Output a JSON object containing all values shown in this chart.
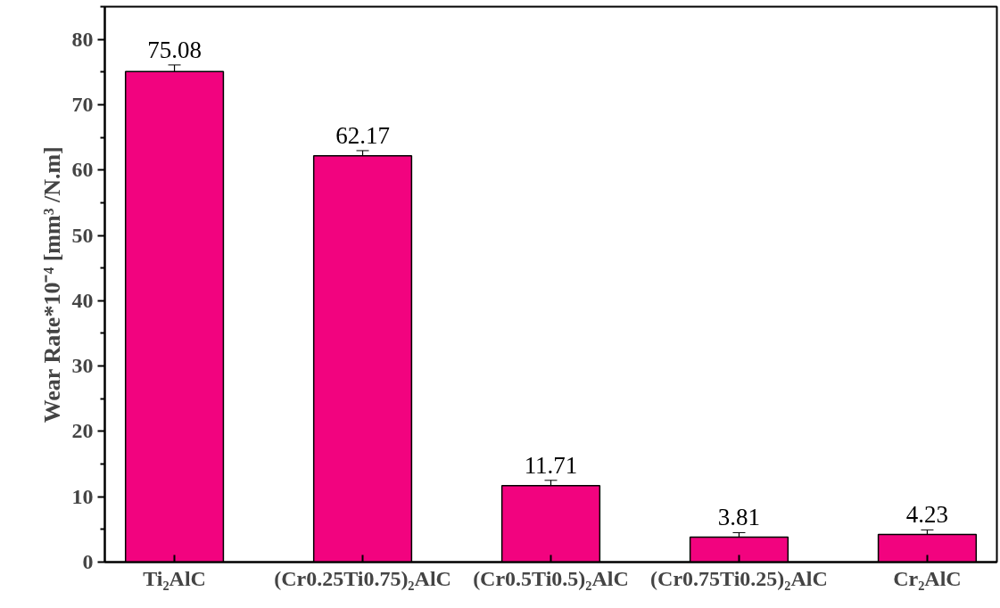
{
  "chart_data": {
    "type": "bar",
    "ylabel": "Wear Rate*10⁻⁴ [mm³ /N.m]",
    "categories": [
      "Ti₂AlC",
      "(Cr0.25Ti0.75)₂AlC",
      "(Cr0.5Ti0.5)₂AlC",
      "(Cr0.75Ti0.25)₂AlC",
      "Cr₂AlC"
    ],
    "values": [
      75.08,
      62.17,
      11.71,
      3.81,
      4.23
    ],
    "errors": [
      1.0,
      0.8,
      0.8,
      0.7,
      0.7
    ],
    "color": "#f2037f",
    "data_labels": true,
    "ylim": [
      0,
      85
    ],
    "yticks": [
      0,
      10,
      20,
      30,
      40,
      50,
      60,
      70,
      80
    ],
    "grid": false
  }
}
